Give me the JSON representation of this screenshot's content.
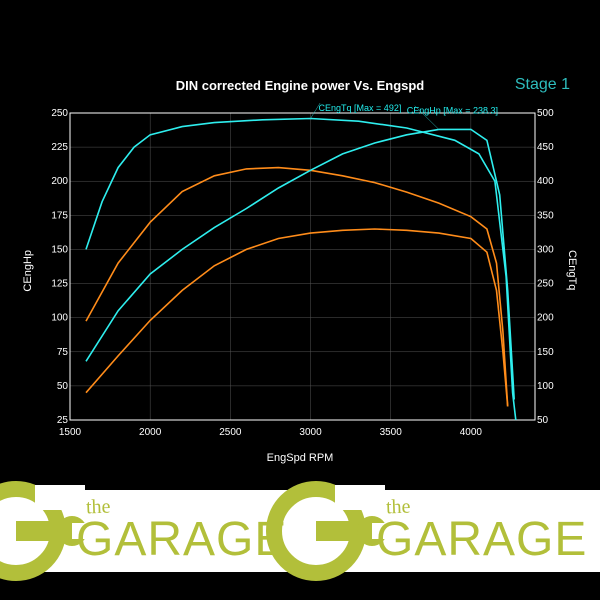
{
  "title": "DIN corrected Engine power Vs. Engspd",
  "stage_label": "Stage 1",
  "stage_color": "#2ebdbd",
  "ylabel_left": "CEngHp",
  "ylabel_right": "CEngTq",
  "xlabel": "EngSpd RPM",
  "background_color": "#000000",
  "grid_color": "#555555",
  "axis_color": "#ffffff",
  "callout_tq": "CEngTq [Max = 492]",
  "callout_hp": "CEngHp [Max = 238.3]",
  "x_axis": {
    "min": 1500,
    "max": 4400,
    "ticks": [
      1500,
      2000,
      2500,
      3000,
      3500,
      4000
    ]
  },
  "y_left": {
    "min": 25,
    "max": 250,
    "ticks": [
      25,
      50,
      75,
      100,
      125,
      150,
      175,
      200,
      225,
      250
    ]
  },
  "y_right": {
    "min": 50,
    "max": 500,
    "ticks": [
      50,
      100,
      150,
      200,
      250,
      300,
      350,
      400,
      450,
      500
    ]
  },
  "series": {
    "tq_tuned": {
      "color": "#2eeeee",
      "width": 1.6,
      "data": [
        [
          1600,
          300
        ],
        [
          1700,
          370
        ],
        [
          1800,
          420
        ],
        [
          1900,
          450
        ],
        [
          2000,
          468
        ],
        [
          2200,
          480
        ],
        [
          2400,
          486
        ],
        [
          2700,
          490
        ],
        [
          3000,
          492
        ],
        [
          3300,
          488
        ],
        [
          3600,
          478
        ],
        [
          3900,
          460
        ],
        [
          4050,
          440
        ],
        [
          4150,
          400
        ],
        [
          4220,
          260
        ],
        [
          4260,
          90
        ],
        [
          4280,
          50
        ]
      ]
    },
    "hp_tuned": {
      "color": "#2eeeee",
      "width": 1.6,
      "data": [
        [
          1600,
          68
        ],
        [
          1800,
          105
        ],
        [
          2000,
          132
        ],
        [
          2200,
          150
        ],
        [
          2400,
          166
        ],
        [
          2600,
          180
        ],
        [
          2800,
          195
        ],
        [
          3000,
          208
        ],
        [
          3200,
          220
        ],
        [
          3400,
          228
        ],
        [
          3600,
          234
        ],
        [
          3800,
          238
        ],
        [
          4000,
          238
        ],
        [
          4100,
          230
        ],
        [
          4180,
          190
        ],
        [
          4230,
          120
        ],
        [
          4270,
          40
        ]
      ]
    },
    "tq_stock": {
      "color": "#ff8c1a",
      "width": 1.6,
      "data": [
        [
          1600,
          195
        ],
        [
          1800,
          280
        ],
        [
          2000,
          340
        ],
        [
          2200,
          385
        ],
        [
          2400,
          408
        ],
        [
          2600,
          418
        ],
        [
          2800,
          420
        ],
        [
          3000,
          416
        ],
        [
          3200,
          408
        ],
        [
          3400,
          398
        ],
        [
          3600,
          384
        ],
        [
          3800,
          368
        ],
        [
          4000,
          348
        ],
        [
          4100,
          330
        ],
        [
          4160,
          280
        ],
        [
          4200,
          180
        ],
        [
          4230,
          70
        ]
      ]
    },
    "hp_stock": {
      "color": "#ff8c1a",
      "width": 1.6,
      "data": [
        [
          1600,
          45
        ],
        [
          1800,
          72
        ],
        [
          2000,
          98
        ],
        [
          2200,
          120
        ],
        [
          2400,
          138
        ],
        [
          2600,
          150
        ],
        [
          2800,
          158
        ],
        [
          3000,
          162
        ],
        [
          3200,
          164
        ],
        [
          3400,
          165
        ],
        [
          3600,
          164
        ],
        [
          3800,
          162
        ],
        [
          4000,
          158
        ],
        [
          4100,
          148
        ],
        [
          4160,
          120
        ],
        [
          4200,
          75
        ],
        [
          4230,
          35
        ]
      ]
    }
  },
  "logo": {
    "the": "the",
    "garage": "GARAGE",
    "color": "#b2bf3a",
    "wrench_color": "#b2bf3a"
  }
}
